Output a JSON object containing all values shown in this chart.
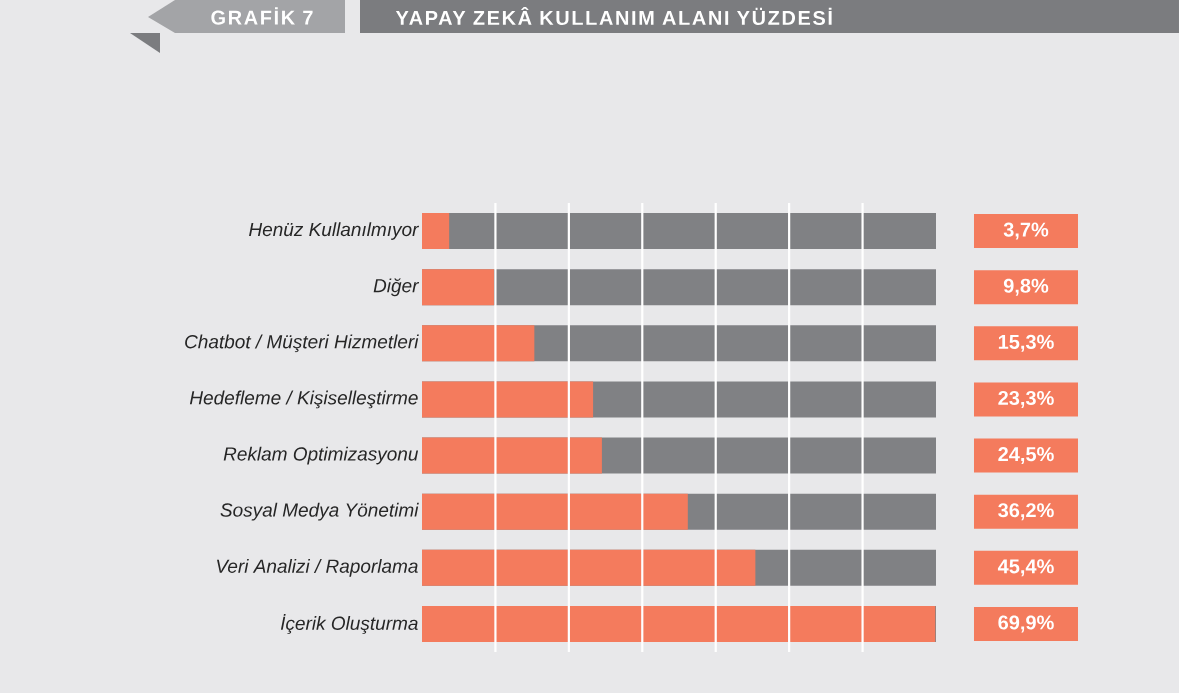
{
  "chart_data": {
    "type": "bar",
    "orientation": "horizontal",
    "title": "YAPAY ZEKÂ KULLANIM ALANI YÜZDESİ",
    "annotations": [
      "GRAFİK 7"
    ],
    "categories": [
      "Henüz Kullanılmıyor",
      "Diğer",
      "Chatbot / Müşteri Hizmetleri",
      "Hedefleme / Kişiselleştirme",
      "Reklam Optimizasyonu",
      "Sosyal Medya Yönetimi",
      "Veri Analizi / Raporlama",
      "İçerik Oluşturma"
    ],
    "values": [
      3.7,
      9.8,
      15.3,
      23.3,
      24.5,
      36.2,
      45.4,
      69.9
    ],
    "value_labels": [
      "3,7%",
      "9,8%",
      "15,3%",
      "23,3%",
      "24,5%",
      "36,2%",
      "45,4%",
      "69,9%"
    ],
    "color": "#f47b5d",
    "xlim": [
      0,
      70
    ],
    "xticks": [
      {
        "value": 10,
        "label": null
      },
      {
        "value": 20,
        "label": null
      },
      {
        "value": 30,
        "label": null
      },
      {
        "value": 40,
        "label": null
      },
      {
        "value": 50,
        "label": null
      },
      {
        "value": 60,
        "label": null
      }
    ],
    "grid": "x",
    "tick_labels": "y"
  }
}
